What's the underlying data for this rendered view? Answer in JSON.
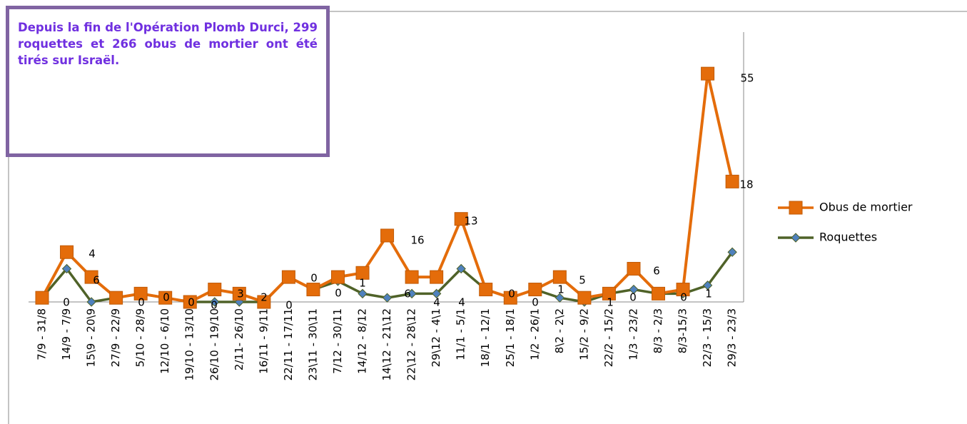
{
  "chart_data": {
    "type": "line",
    "note": "Depuis la fin de l'Opération Plomb Durci, 299 roquettes et 266 obus de mortier ont été tirés sur Israël.",
    "categories": [
      "7/9 - 31/8",
      "14/9 - 7/9",
      "15\\9 - 20\\9",
      "27/9 - 22/9",
      "5/10 - 28/9",
      "12/10 - 6/10",
      "19/10 - 13/10",
      "26/10 - 19/10",
      "2/11- 26/10",
      "16/11 - 9/11",
      "22/11 - 17/11",
      "23\\11 - 30\\11",
      "7/12 - 30/11",
      "14/12 - 8/12",
      "14\\12 - 21\\12",
      "22\\12 - 28\\12",
      "29\\12 - 4\\1",
      "11/1 - 5/1",
      "18/1 - 12/1",
      "25/1 - 18/1",
      "1/2 - 26/1",
      "8\\2 - 2\\2",
      "15/2 - 9/2",
      "22/2 - 15/2",
      "1/3 - 23/2",
      "8/3 - 2/3",
      "8/3-15/3",
      "22/3 - 15/3",
      "29/3 - 23/3"
    ],
    "series": [
      {
        "name": "Obus de mortier",
        "color": "#e46c0a",
        "values": [
          1,
          12,
          6,
          1,
          2,
          1,
          0,
          3,
          2,
          0,
          6,
          3,
          6,
          7,
          16,
          6,
          6,
          20,
          3,
          1,
          3,
          6,
          1,
          2,
          8,
          2,
          3,
          55,
          29
        ]
      },
      {
        "name": "Roquettes",
        "color": "#4f6228",
        "values": [
          1,
          8,
          0,
          1,
          2,
          1,
          0,
          0,
          0,
          0,
          6,
          3,
          5,
          2,
          1,
          2,
          2,
          8,
          3,
          1,
          3,
          1,
          0,
          2,
          3,
          2,
          2,
          4,
          12
        ]
      }
    ],
    "annotations": [
      "0",
      "4",
      "6",
      "0",
      "0",
      "0",
      "0",
      "3",
      "2",
      "0",
      "0",
      "0",
      "1",
      "6",
      "16",
      "4",
      "4",
      "13",
      "0",
      "0",
      "1",
      "5",
      "1",
      "0",
      "6",
      "0",
      "1",
      "55",
      "18"
    ],
    "ylim": [
      0,
      65
    ]
  }
}
